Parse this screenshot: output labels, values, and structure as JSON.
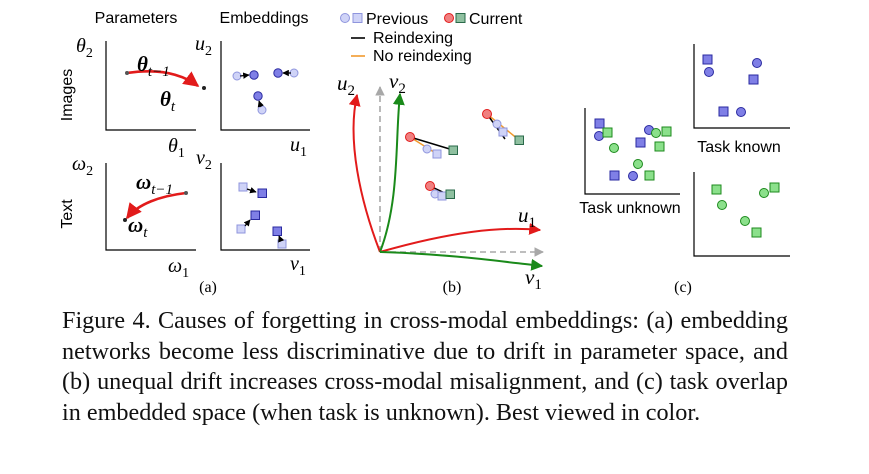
{
  "panel_a": {
    "col_parameters": "Parameters",
    "col_embeddings": "Embeddings",
    "row_images": "Images",
    "row_text": "Text",
    "theta2": "θ",
    "theta2_sub": "2",
    "theta1": "θ",
    "theta1_sub": "1",
    "theta_prev": "θ",
    "theta_prev_sub": "t−1",
    "theta_cur": "θ",
    "theta_cur_sub": "t",
    "omega2": "ω",
    "omega2_sub": "2",
    "omega1": "ω",
    "omega1_sub": "1",
    "omega_prev": "ω",
    "omega_prev_sub": "t−1",
    "omega_cur": "ω",
    "omega_cur_sub": "t",
    "u2": "u",
    "u2_sub": "2",
    "u1": "u",
    "u1_sub": "1",
    "v2": "v",
    "v2_sub": "2",
    "v1": "v",
    "v1_sub": "1",
    "label": "(a)"
  },
  "panel_b": {
    "legend_previous": "Previous",
    "legend_current": "Current",
    "legend_reindexing": "Reindexing",
    "legend_no_reindexing": "No reindexing",
    "u2": "u",
    "u2_sub": "2",
    "v2": "v",
    "v2_sub": "2",
    "u1": "u",
    "u1_sub": "1",
    "v1": "v",
    "v1_sub": "1",
    "label": "(b)"
  },
  "panel_c": {
    "task_unknown": "Task unknown",
    "task_known": "Task known",
    "label": "(c)"
  },
  "colors": {
    "red": "#e21b1b",
    "green": "#1a8a1a",
    "gray": "#a8a8a8",
    "orange": "#f29a2e",
    "blue_fill": "#7f7fe6",
    "blue_stroke": "#2a2aa0",
    "green_fill": "#8be08b",
    "green_stroke": "#1d8a1d",
    "prev_fill": "#cfd3f7",
    "prev_stroke": "#8f95dd"
  },
  "caption": "Figure 4. Causes of forgetting in cross-modal embeddings: (a) embedding networks become less discriminative due to drift in parameter space, and (b) unequal drift increases cross-modal misalignment, and (c) task overlap in embedded space (when task is unknown). Best viewed in color."
}
